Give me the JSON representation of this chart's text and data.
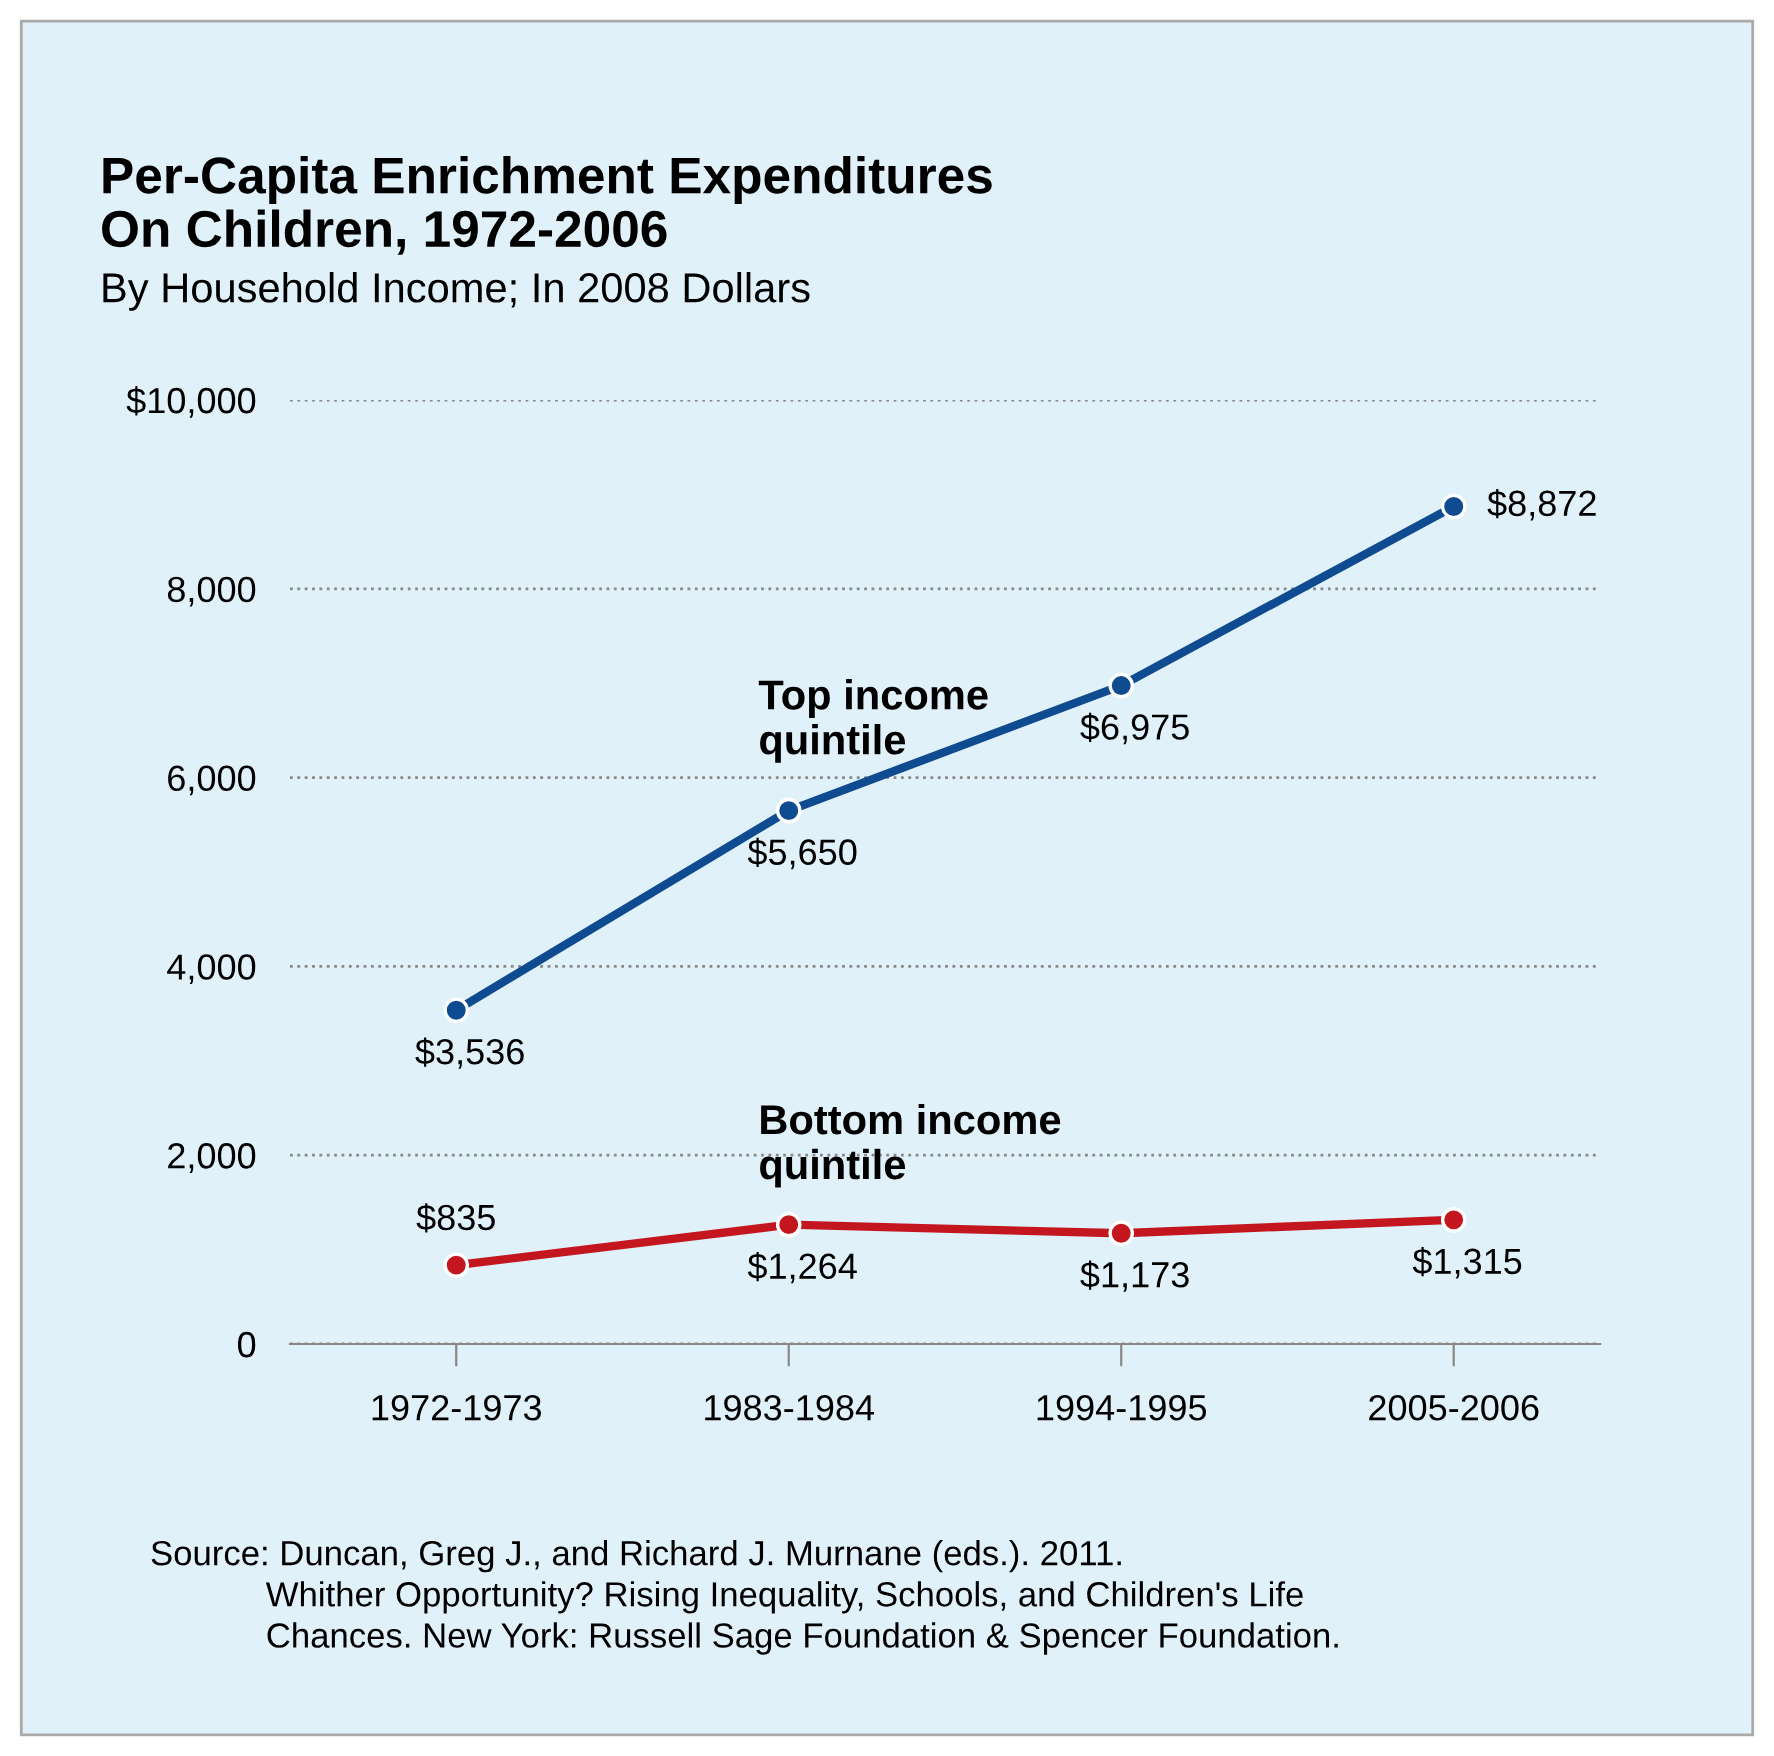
{
  "chart_data": {
    "type": "line",
    "title": "Per-Capita Enrichment Expenditures\nOn Children, 1972-2006",
    "subtitle": "By Household Income; In 2008 Dollars",
    "categories": [
      "1972-1973",
      "1983-1984",
      "1994-1995",
      "2005-2006"
    ],
    "series": [
      {
        "name": "Top income\nquintile",
        "color": "#0e4b91",
        "values": [
          3536,
          5650,
          6975,
          8872
        ],
        "value_labels": [
          "$3,536",
          "$5,650",
          "$6,975",
          "$8,872"
        ]
      },
      {
        "name": "Bottom income\nquintile",
        "color": "#c3161f",
        "values": [
          835,
          1264,
          1173,
          1315
        ],
        "value_labels": [
          "$835",
          "$1,264",
          "$1,173",
          "$1,315"
        ]
      }
    ],
    "ylim": [
      0,
      10000
    ],
    "yticks": [
      0,
      {
        "value": 2000,
        "label": "2,000"
      },
      {
        "value": 4000,
        "label": "4,000"
      },
      {
        "value": 6000,
        "label": "6,000"
      },
      {
        "value": 8000,
        "label": "8,000"
      },
      {
        "value": 10000,
        "label": "$10,000"
      }
    ],
    "grid": "y",
    "legend": false,
    "marker": "circle",
    "line_style": "solid",
    "annotations": [
      "Source: Duncan, Greg J., and Richard J. Murnane (eds.). 2011.\n            Whither Opportunity? Rising Inequality, Schools, and Children's Life\n            Chances. New York: Russell Sage Foundation & Spencer Foundation."
    ]
  }
}
